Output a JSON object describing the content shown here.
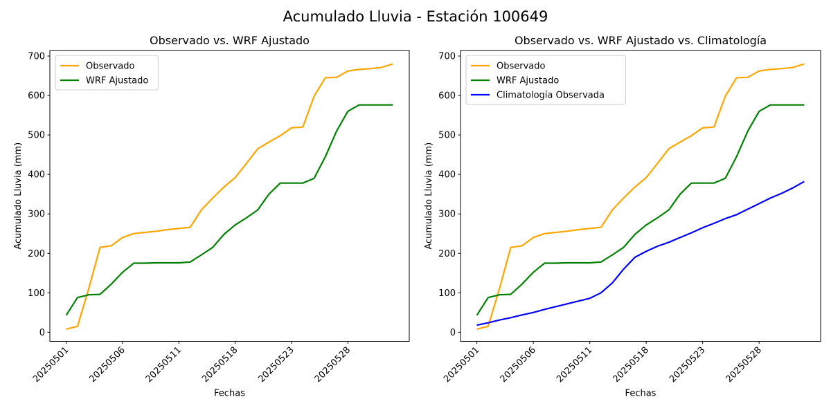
{
  "figure": {
    "suptitle": "Acumulado Lluvia - Estación 100649",
    "background": "#ffffff"
  },
  "chart_data": [
    {
      "id": "left",
      "type": "line",
      "title": "Observado vs. WRF Ajustado",
      "xlabel": "Fechas",
      "ylabel": "Acumulado Lluvia (mm)",
      "grid": false,
      "legend_position": "upper left",
      "x": [
        "20250501",
        "20250502",
        "20250503",
        "20250504",
        "20250505",
        "20250506",
        "20250507",
        "20250508",
        "20250509",
        "20250510",
        "20250511",
        "20250513",
        "20250514",
        "20250515",
        "20250516",
        "20250518",
        "20250519",
        "20250520",
        "20250521",
        "20250522",
        "20250523",
        "20250524",
        "20250525",
        "20250526",
        "20250527",
        "20250528",
        "20250529",
        "20250530",
        "20250531",
        "20250601"
      ],
      "xtick_positions": [
        0,
        5,
        10,
        15,
        20,
        25
      ],
      "xtick_labels": [
        "20250501",
        "20250506",
        "20250511",
        "20250518",
        "20250523",
        "20250528"
      ],
      "yticks": [
        0,
        100,
        200,
        300,
        400,
        500,
        600,
        700
      ],
      "xlim": [
        -1.45,
        30.45
      ],
      "ylim": [
        -23,
        714
      ],
      "series": [
        {
          "name": "Observado",
          "color": "#FFA500",
          "values": [
            8,
            15,
            110,
            215,
            219,
            240,
            250,
            253,
            256,
            260,
            263,
            266,
            310,
            340,
            368,
            392,
            428,
            465,
            482,
            498,
            518,
            520,
            598,
            645,
            646,
            662,
            666,
            668,
            671,
            680
          ]
        },
        {
          "name": "WRF Ajustado",
          "color": "#008000",
          "values": [
            43,
            88,
            95,
            96,
            122,
            152,
            175,
            175,
            176,
            176,
            176,
            178,
            196,
            215,
            248,
            272,
            290,
            310,
            350,
            378,
            378,
            378,
            390,
            445,
            510,
            560,
            576,
            576,
            576,
            576
          ]
        }
      ]
    },
    {
      "id": "right",
      "type": "line",
      "title": "Observado vs. WRF Ajustado vs. Climatología",
      "xlabel": "Fechas",
      "ylabel": "Acumulado Lluvia (mm)",
      "grid": false,
      "legend_position": "upper left",
      "x": [
        "20250501",
        "20250502",
        "20250503",
        "20250504",
        "20250505",
        "20250506",
        "20250507",
        "20250508",
        "20250509",
        "20250510",
        "20250511",
        "20250513",
        "20250514",
        "20250515",
        "20250516",
        "20250518",
        "20250519",
        "20250520",
        "20250521",
        "20250522",
        "20250523",
        "20250524",
        "20250525",
        "20250526",
        "20250527",
        "20250528",
        "20250529",
        "20250530",
        "20250531",
        "20250601"
      ],
      "xtick_positions": [
        0,
        5,
        10,
        15,
        20,
        25
      ],
      "xtick_labels": [
        "20250501",
        "20250506",
        "20250511",
        "20250518",
        "20250523",
        "20250528"
      ],
      "yticks": [
        0,
        100,
        200,
        300,
        400,
        500,
        600,
        700
      ],
      "xlim": [
        -1.45,
        30.45
      ],
      "ylim": [
        -23,
        714
      ],
      "series": [
        {
          "name": "Observado",
          "color": "#FFA500",
          "values": [
            8,
            15,
            110,
            215,
            219,
            240,
            250,
            253,
            256,
            260,
            263,
            266,
            310,
            340,
            368,
            392,
            428,
            465,
            482,
            498,
            518,
            520,
            598,
            645,
            646,
            662,
            666,
            668,
            671,
            680
          ]
        },
        {
          "name": "WRF Ajustado",
          "color": "#008000",
          "values": [
            43,
            88,
            95,
            96,
            122,
            152,
            175,
            175,
            176,
            176,
            176,
            178,
            196,
            215,
            248,
            272,
            290,
            310,
            350,
            378,
            378,
            378,
            390,
            445,
            510,
            560,
            576,
            576,
            576,
            576
          ]
        },
        {
          "name": "Climatología Observada",
          "color": "#0000FF",
          "values": [
            18,
            24,
            31,
            37,
            44,
            50,
            58,
            65,
            72,
            79,
            86,
            100,
            125,
            160,
            190,
            205,
            218,
            228,
            240,
            252,
            265,
            276,
            288,
            298,
            312,
            326,
            340,
            352,
            366,
            382
          ]
        }
      ]
    }
  ]
}
